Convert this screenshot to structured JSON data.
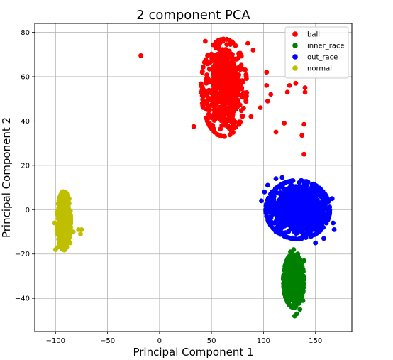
{
  "chart_data": {
    "type": "scatter",
    "title": "2 component PCA",
    "xlabel": "Principal Component 1",
    "ylabel": "Principal Component 2",
    "xlim": [
      -120,
      185
    ],
    "ylim": [
      -55,
      84
    ],
    "xticks": [
      -100,
      -50,
      0,
      50,
      100,
      150
    ],
    "yticks": [
      -40,
      -20,
      0,
      20,
      40,
      60,
      80
    ],
    "xtick_labels": [
      "−100",
      "−50",
      "0",
      "50",
      "100",
      "150"
    ],
    "ytick_labels": [
      "−40",
      "−20",
      "0",
      "20",
      "40",
      "60",
      "80"
    ],
    "grid": true,
    "legend_position": "upper right",
    "series": [
      {
        "name": "ball",
        "color": "#ff0000",
        "cluster": {
          "center": [
            62,
            55
          ],
          "spread": [
            10,
            10
          ],
          "n": 650
        },
        "points": [
          [
            -18,
            69.5
          ],
          [
            33,
            37.5
          ],
          [
            112,
            35
          ],
          [
            120,
            39
          ],
          [
            139,
            38.5
          ],
          [
            139,
            25
          ],
          [
            137,
            33.5
          ],
          [
            140,
            55
          ],
          [
            140,
            53
          ],
          [
            131,
            57
          ],
          [
            125,
            56
          ],
          [
            123,
            53
          ],
          [
            44,
            76
          ],
          [
            61,
            76
          ],
          [
            70,
            70
          ],
          [
            85,
            75
          ],
          [
            90,
            72
          ],
          [
            103,
            62
          ],
          [
            103,
            56
          ],
          [
            107,
            52
          ],
          [
            104,
            49
          ],
          [
            45,
            57
          ],
          [
            42,
            53
          ],
          [
            44,
            49
          ],
          [
            52,
            36.5
          ],
          [
            97,
            46
          ],
          [
            88,
            42
          ]
        ]
      },
      {
        "name": "inner_race",
        "color": "#008000",
        "cluster": {
          "center": [
            129,
            -32
          ],
          "spread": [
            4.5,
            5.5
          ],
          "n": 600
        },
        "points": [
          [
            126,
            -19
          ],
          [
            129,
            -18
          ],
          [
            133,
            -20
          ],
          [
            136,
            -30
          ],
          [
            137,
            -24
          ],
          [
            139,
            -23
          ],
          [
            138,
            -41
          ],
          [
            132,
            -47
          ],
          [
            130,
            -48
          ],
          [
            135,
            -45
          ],
          [
            121,
            -35
          ],
          [
            119,
            -31
          ]
        ]
      },
      {
        "name": "out_race",
        "color": "#0000ff",
        "cluster": {
          "center": [
            133,
            0
          ],
          "spread": [
            14,
            6
          ],
          "n": 1100
        },
        "points": [
          [
            98,
            4
          ],
          [
            101,
            8
          ],
          [
            104,
            11
          ],
          [
            112,
            14
          ],
          [
            118,
            14.5
          ],
          [
            166,
            5
          ],
          [
            168,
            -9
          ],
          [
            167,
            -6
          ],
          [
            150,
            -15
          ],
          [
            158,
            -13
          ],
          [
            103,
            -3
          ],
          [
            107,
            -7
          ],
          [
            112,
            -10
          ]
        ]
      },
      {
        "name": "normal",
        "color": "#bfbf00",
        "cluster": {
          "center": [
            -92,
            -5
          ],
          "spread": [
            3,
            6
          ],
          "n": 650
        },
        "points": [
          [
            -75,
            -9
          ],
          [
            -78,
            -9
          ],
          [
            -76,
            -11
          ],
          [
            -92,
            8
          ],
          [
            -89,
            7
          ],
          [
            -100,
            -18
          ],
          [
            -98,
            -17
          ],
          [
            -86,
            -15
          ],
          [
            -83,
            -10
          ],
          [
            -87,
            5
          ],
          [
            -101,
            -6
          ]
        ]
      }
    ]
  }
}
